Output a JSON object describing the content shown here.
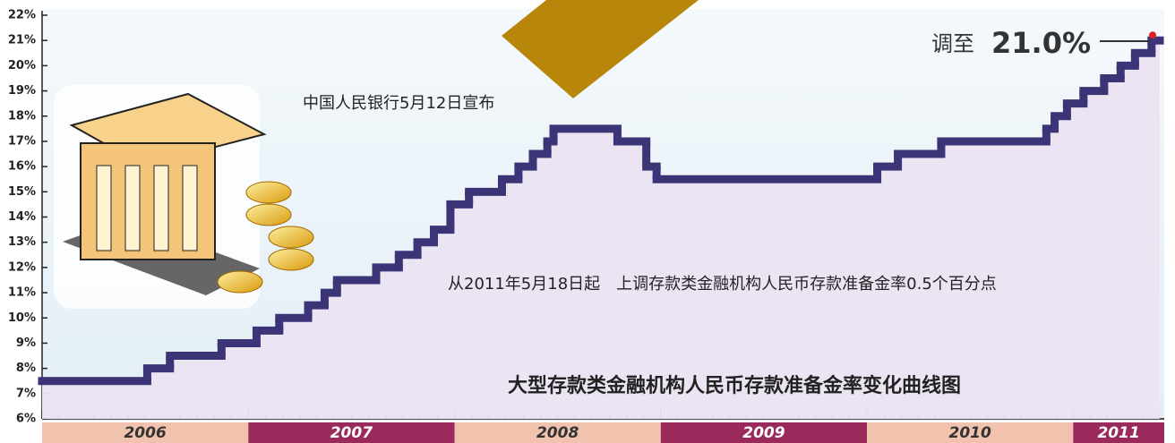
{
  "chart_data": {
    "type": "step",
    "title": "大型存款类金融机构人民币存款准备金率变化曲线图",
    "annotations": [
      "中国人民银行5月12日宣布",
      "从2011年5月18日起　上调存款类金融机构人民币存款准备金率0.5个百分点"
    ],
    "callout": [
      "调至",
      "21.0%"
    ],
    "year_bands": [
      "2006",
      "2007",
      "2008",
      "2009",
      "2010",
      "2011"
    ],
    "x": [
      2006.0,
      2006.51,
      2006.62,
      2006.87,
      2007.04,
      2007.15,
      2007.29,
      2007.37,
      2007.43,
      2007.62,
      2007.73,
      2007.82,
      2007.9,
      2007.98,
      2008.07,
      2008.23,
      2008.31,
      2008.38,
      2008.45,
      2008.48,
      2008.79,
      2008.93,
      2008.98,
      2010.05,
      2010.15,
      2010.36,
      2010.87,
      2010.91,
      2010.97,
      2011.05,
      2011.15,
      2011.23,
      2011.3,
      2011.38
    ],
    "values": [
      7.5,
      8.0,
      8.5,
      9.0,
      9.5,
      10.0,
      10.5,
      11.0,
      11.5,
      12.0,
      12.5,
      13.0,
      13.5,
      14.5,
      15.0,
      15.5,
      16.0,
      16.5,
      17.0,
      17.5,
      17.0,
      16.0,
      15.5,
      16.0,
      16.5,
      17.0,
      17.5,
      18.0,
      18.5,
      19.0,
      19.5,
      20.0,
      20.5,
      21.0
    ],
    "color": "#3b3577",
    "xlim": [
      2006,
      2011.42
    ],
    "ylim": [
      6,
      22
    ],
    "yticks": [
      {
        "value": 6,
        "label": "6%"
      },
      {
        "value": 7,
        "label": "7%"
      },
      {
        "value": 8,
        "label": "8%"
      },
      {
        "value": 9,
        "label": "9%"
      },
      {
        "value": 10,
        "label": "10%"
      },
      {
        "value": 11,
        "label": "11%"
      },
      {
        "value": 12,
        "label": "12%"
      },
      {
        "value": 13,
        "label": "13%"
      },
      {
        "value": 14,
        "label": "14%"
      },
      {
        "value": 15,
        "label": "15%"
      },
      {
        "value": 16,
        "label": "16%"
      },
      {
        "value": 17,
        "label": "17%"
      },
      {
        "value": 18,
        "label": "18%"
      },
      {
        "value": 19,
        "label": "19%"
      },
      {
        "value": 20,
        "label": "20%"
      },
      {
        "value": 21,
        "label": "21%"
      },
      {
        "value": 22,
        "label": "22%"
      }
    ]
  }
}
